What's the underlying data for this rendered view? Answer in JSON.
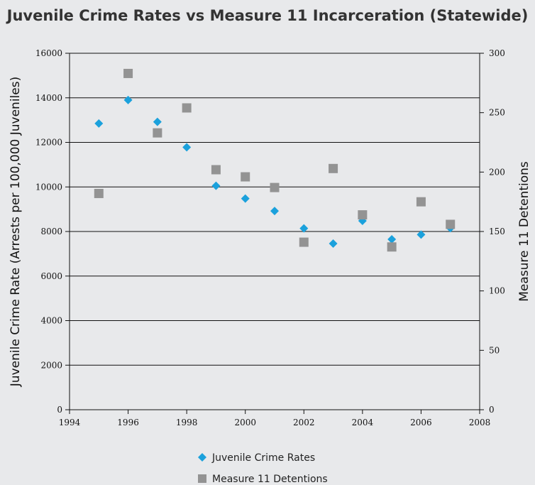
{
  "chart_data": {
    "type": "scatter",
    "title": "Juvenile Crime Rates vs Measure 11 Incarceration (Statewide)",
    "xlabel": "",
    "ylabel": "Juvenile Crime Rate (Arrests per 100,000 Juveniles)",
    "y2label": "Measure 11 Detentions",
    "xlim": [
      1994,
      2008
    ],
    "ylim": [
      0,
      16000
    ],
    "y2lim": [
      0,
      300
    ],
    "x_ticks": [
      "1994",
      "1996",
      "1998",
      "2000",
      "2002",
      "2004",
      "2006",
      "2008"
    ],
    "y_ticks": [
      "0",
      "2000",
      "4000",
      "6000",
      "8000",
      "10000",
      "12000",
      "14000",
      "16000"
    ],
    "y2_ticks": [
      "0",
      "50",
      "100",
      "150",
      "200",
      "250",
      "300"
    ],
    "grid": "horizontal",
    "legend_position": "bottom",
    "series": [
      {
        "name": "Juvenile Crime Rates",
        "axis": "left",
        "marker": "diamond",
        "color": "#1ba1dc",
        "x": [
          1995,
          1996,
          1997,
          1998,
          1999,
          2000,
          2001,
          2002,
          2003,
          2004,
          2005,
          2006,
          2007
        ],
        "y": [
          12850,
          13900,
          12920,
          11780,
          10050,
          9480,
          8920,
          8140,
          7460,
          8480,
          7650,
          7860,
          8150
        ]
      },
      {
        "name": "Measure 11 Detentions",
        "axis": "right",
        "marker": "square",
        "color": "#939393",
        "x": [
          1995,
          1996,
          1997,
          1998,
          1999,
          2000,
          2001,
          2002,
          2003,
          2004,
          2005,
          2006,
          2007
        ],
        "y": [
          182,
          283,
          233,
          254,
          202,
          196,
          187,
          141,
          203,
          164,
          137,
          175,
          156
        ]
      }
    ]
  }
}
